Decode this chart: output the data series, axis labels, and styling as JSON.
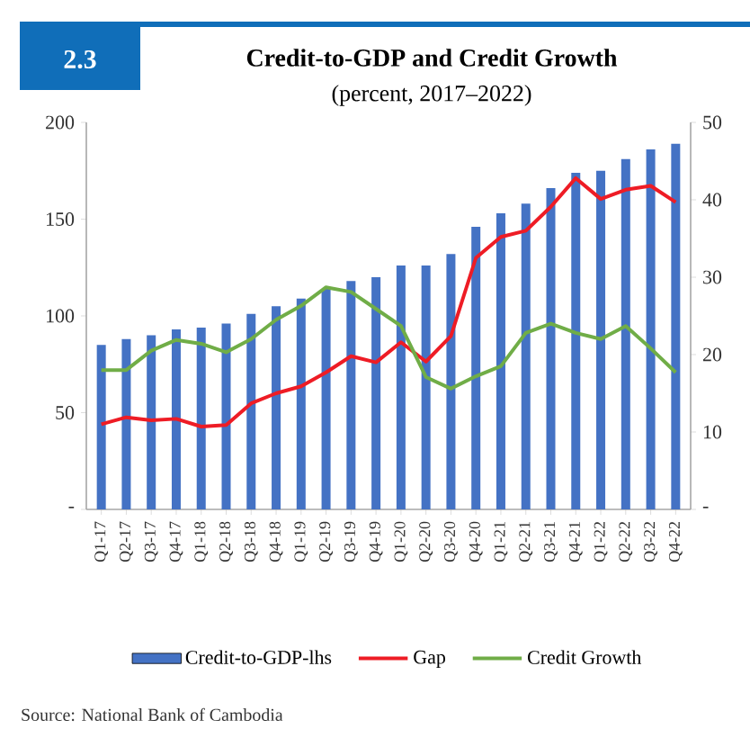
{
  "chart_data": {
    "type": "bar",
    "title": "Credit-to-GDP and Credit Growth",
    "subtitle": "(percent, 2017–2022)",
    "annotations": [
      "2.3",
      "Source: National Bank of Cambodia"
    ],
    "categories": [
      "Q1-17",
      "Q2-17",
      "Q3-17",
      "Q4-17",
      "Q1-18",
      "Q2-18",
      "Q3-18",
      "Q4-18",
      "Q1-19",
      "Q2-19",
      "Q3-19",
      "Q4-19",
      "Q1-20",
      "Q2-20",
      "Q3-20",
      "Q4-20",
      "Q1-21",
      "Q2-21",
      "Q3-21",
      "Q4-21",
      "Q1-22",
      "Q2-22",
      "Q3-22",
      "Q4-22"
    ],
    "series": [
      {
        "name": "Credit-to-GDP-lhs",
        "color": "#4472c4",
        "values": [
          85,
          88,
          90,
          93,
          94,
          96,
          101,
          105,
          109,
          114,
          118,
          120,
          126,
          126,
          132,
          146,
          153,
          158,
          166,
          174,
          175,
          181,
          186,
          189
        ]
      },
      {
        "name": "Gap",
        "type": "line",
        "axis": "y2",
        "color": "#ee1c25",
        "values": [
          11,
          11.9,
          11.5,
          11.7,
          10.7,
          10.9,
          13.7,
          15,
          15.9,
          17.7,
          19.8,
          19,
          21.6,
          19.1,
          22.4,
          32.5,
          35.2,
          36,
          39.1,
          42.8,
          40.1,
          41.3,
          41.8,
          39.7
        ]
      },
      {
        "name": "Credit Growth",
        "type": "line",
        "axis": "y2",
        "color": "#70ad47",
        "values": [
          18,
          18,
          20.5,
          21.9,
          21.4,
          20.3,
          22,
          24.5,
          26.3,
          28.7,
          28.1,
          25.9,
          23.7,
          17.1,
          15.6,
          17.2,
          18.5,
          22.8,
          24,
          22.8,
          22,
          23.7,
          20.8,
          17.7
        ]
      }
    ],
    "ylim": [
      0,
      200
    ],
    "yticks": [
      {
        "value": 0,
        "label": "-"
      },
      50,
      100,
      150,
      200
    ],
    "y2lim": [
      0,
      50
    ],
    "y2ticks": [
      {
        "value": 0,
        "label": "-"
      },
      10,
      20,
      30,
      40,
      50
    ],
    "legend": "bottom",
    "grid": false,
    "marker": "none",
    "line_style": "solid"
  }
}
